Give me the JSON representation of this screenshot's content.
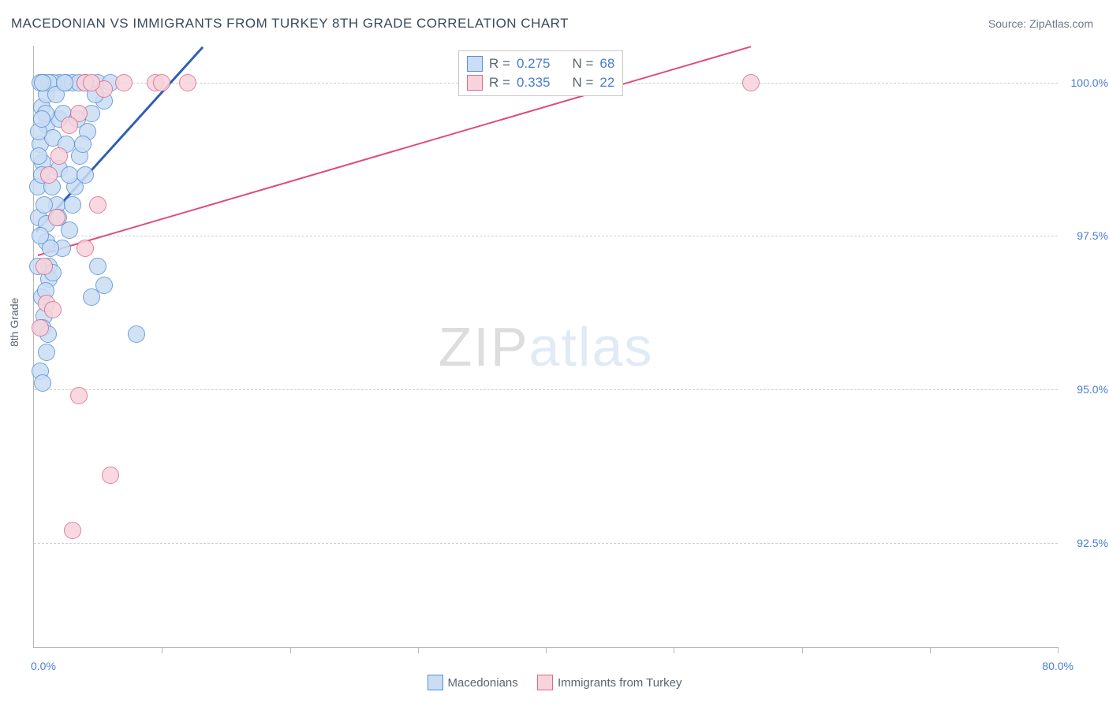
{
  "title": "MACEDONIAN VS IMMIGRANTS FROM TURKEY 8TH GRADE CORRELATION CHART",
  "source_label": "Source: ",
  "source_value": "ZipAtlas.com",
  "watermark": {
    "part1": "ZIP",
    "part2": "atlas"
  },
  "chart": {
    "type": "scatter",
    "ylabel": "8th Grade",
    "xlim": [
      0,
      80
    ],
    "ylim": [
      90.8,
      100.6
    ],
    "xlim_labels": {
      "min": "0.0%",
      "max": "80.0%"
    },
    "xticks_pct": [
      10,
      20,
      30,
      40,
      50,
      60,
      70,
      80
    ],
    "gridlines": [
      {
        "value": 100.0,
        "label": "100.0%"
      },
      {
        "value": 97.5,
        "label": "97.5%"
      },
      {
        "value": 95.0,
        "label": "95.0%"
      },
      {
        "value": 92.5,
        "label": "92.5%"
      }
    ],
    "grid_color": "#d0d0d0",
    "axis_color": "#b8b8b8",
    "tick_label_color": "#4a7dd4",
    "tick_fontsize": 14,
    "background_color": "#ffffff",
    "marker_radius": 10,
    "marker_stroke_width": 1,
    "series": [
      {
        "key": "macedonians",
        "label": "Macedonians",
        "fill": "#c9ddf4",
        "stroke": "#5a8fd6",
        "R": "0.275",
        "N": "68",
        "trend": {
          "x1": 0.2,
          "y1": 97.6,
          "x2": 13.2,
          "y2": 100.6,
          "color": "#2f5fb3",
          "width": 3
        },
        "points": [
          [
            0.5,
            99.0
          ],
          [
            0.6,
            99.6
          ],
          [
            0.8,
            100.0
          ],
          [
            1.0,
            99.3
          ],
          [
            1.0,
            97.4
          ],
          [
            1.2,
            97.0
          ],
          [
            0.4,
            97.8
          ],
          [
            0.3,
            98.3
          ],
          [
            0.7,
            98.7
          ],
          [
            1.5,
            99.1
          ],
          [
            2.0,
            100.0
          ],
          [
            2.5,
            100.0
          ],
          [
            3.0,
            100.0
          ],
          [
            3.5,
            100.0
          ],
          [
            4.0,
            100.0
          ],
          [
            5.0,
            100.0
          ],
          [
            5.5,
            99.7
          ],
          [
            6.0,
            100.0
          ],
          [
            1.8,
            98.0
          ],
          [
            2.0,
            98.6
          ],
          [
            0.6,
            96.5
          ],
          [
            0.8,
            96.2
          ],
          [
            1.0,
            95.6
          ],
          [
            0.5,
            95.3
          ],
          [
            0.7,
            95.1
          ],
          [
            1.2,
            96.8
          ],
          [
            2.2,
            97.3
          ],
          [
            2.8,
            97.6
          ],
          [
            3.2,
            98.3
          ],
          [
            3.6,
            98.8
          ],
          [
            4.2,
            99.2
          ],
          [
            4.5,
            99.5
          ],
          [
            4.8,
            99.8
          ],
          [
            1.0,
            99.8
          ],
          [
            1.5,
            100.0
          ],
          [
            1.2,
            100.0
          ],
          [
            0.5,
            100.0
          ],
          [
            0.7,
            100.0
          ],
          [
            2.0,
            99.4
          ],
          [
            2.5,
            99.0
          ],
          [
            2.8,
            98.5
          ],
          [
            3.0,
            98.0
          ],
          [
            0.4,
            99.2
          ],
          [
            0.6,
            98.5
          ],
          [
            0.8,
            98.0
          ],
          [
            1.0,
            97.7
          ],
          [
            1.3,
            97.3
          ],
          [
            1.5,
            96.9
          ],
          [
            0.5,
            97.5
          ],
          [
            0.9,
            99.5
          ],
          [
            1.7,
            99.8
          ],
          [
            2.3,
            99.5
          ],
          [
            0.3,
            97.0
          ],
          [
            0.7,
            96.0
          ],
          [
            1.4,
            98.3
          ],
          [
            1.9,
            97.8
          ],
          [
            2.4,
            100.0
          ],
          [
            3.4,
            99.4
          ],
          [
            3.8,
            99.0
          ],
          [
            4.0,
            98.5
          ],
          [
            0.4,
            98.8
          ],
          [
            0.6,
            99.4
          ],
          [
            8.0,
            95.9
          ],
          [
            4.5,
            96.5
          ],
          [
            5.5,
            96.7
          ],
          [
            5.0,
            97.0
          ],
          [
            1.1,
            95.9
          ],
          [
            0.9,
            96.6
          ]
        ]
      },
      {
        "key": "turkey",
        "label": "Immigrants from Turkey",
        "fill": "#f7d3dc",
        "stroke": "#d96b8c",
        "R": "0.335",
        "N": "22",
        "trend": {
          "x1": 0.3,
          "y1": 97.2,
          "x2": 56.0,
          "y2": 100.6,
          "color": "#e04a7a",
          "width": 2
        },
        "points": [
          [
            56.0,
            100.0
          ],
          [
            9.5,
            100.0
          ],
          [
            10.0,
            100.0
          ],
          [
            12.0,
            100.0
          ],
          [
            5.5,
            99.9
          ],
          [
            5.0,
            98.0
          ],
          [
            4.0,
            97.3
          ],
          [
            1.0,
            96.4
          ],
          [
            1.5,
            96.3
          ],
          [
            0.5,
            96.0
          ],
          [
            3.5,
            94.9
          ],
          [
            3.0,
            92.7
          ],
          [
            4.0,
            100.0
          ],
          [
            7.0,
            100.0
          ],
          [
            4.5,
            100.0
          ],
          [
            3.5,
            99.5
          ],
          [
            2.0,
            98.8
          ],
          [
            1.8,
            97.8
          ],
          [
            6.0,
            93.6
          ],
          [
            0.8,
            97.0
          ],
          [
            2.8,
            99.3
          ],
          [
            1.2,
            98.5
          ]
        ]
      }
    ],
    "stats_box": {
      "R_label": "R =",
      "N_label": "N ="
    }
  },
  "legend": {
    "position": "bottom-center"
  }
}
